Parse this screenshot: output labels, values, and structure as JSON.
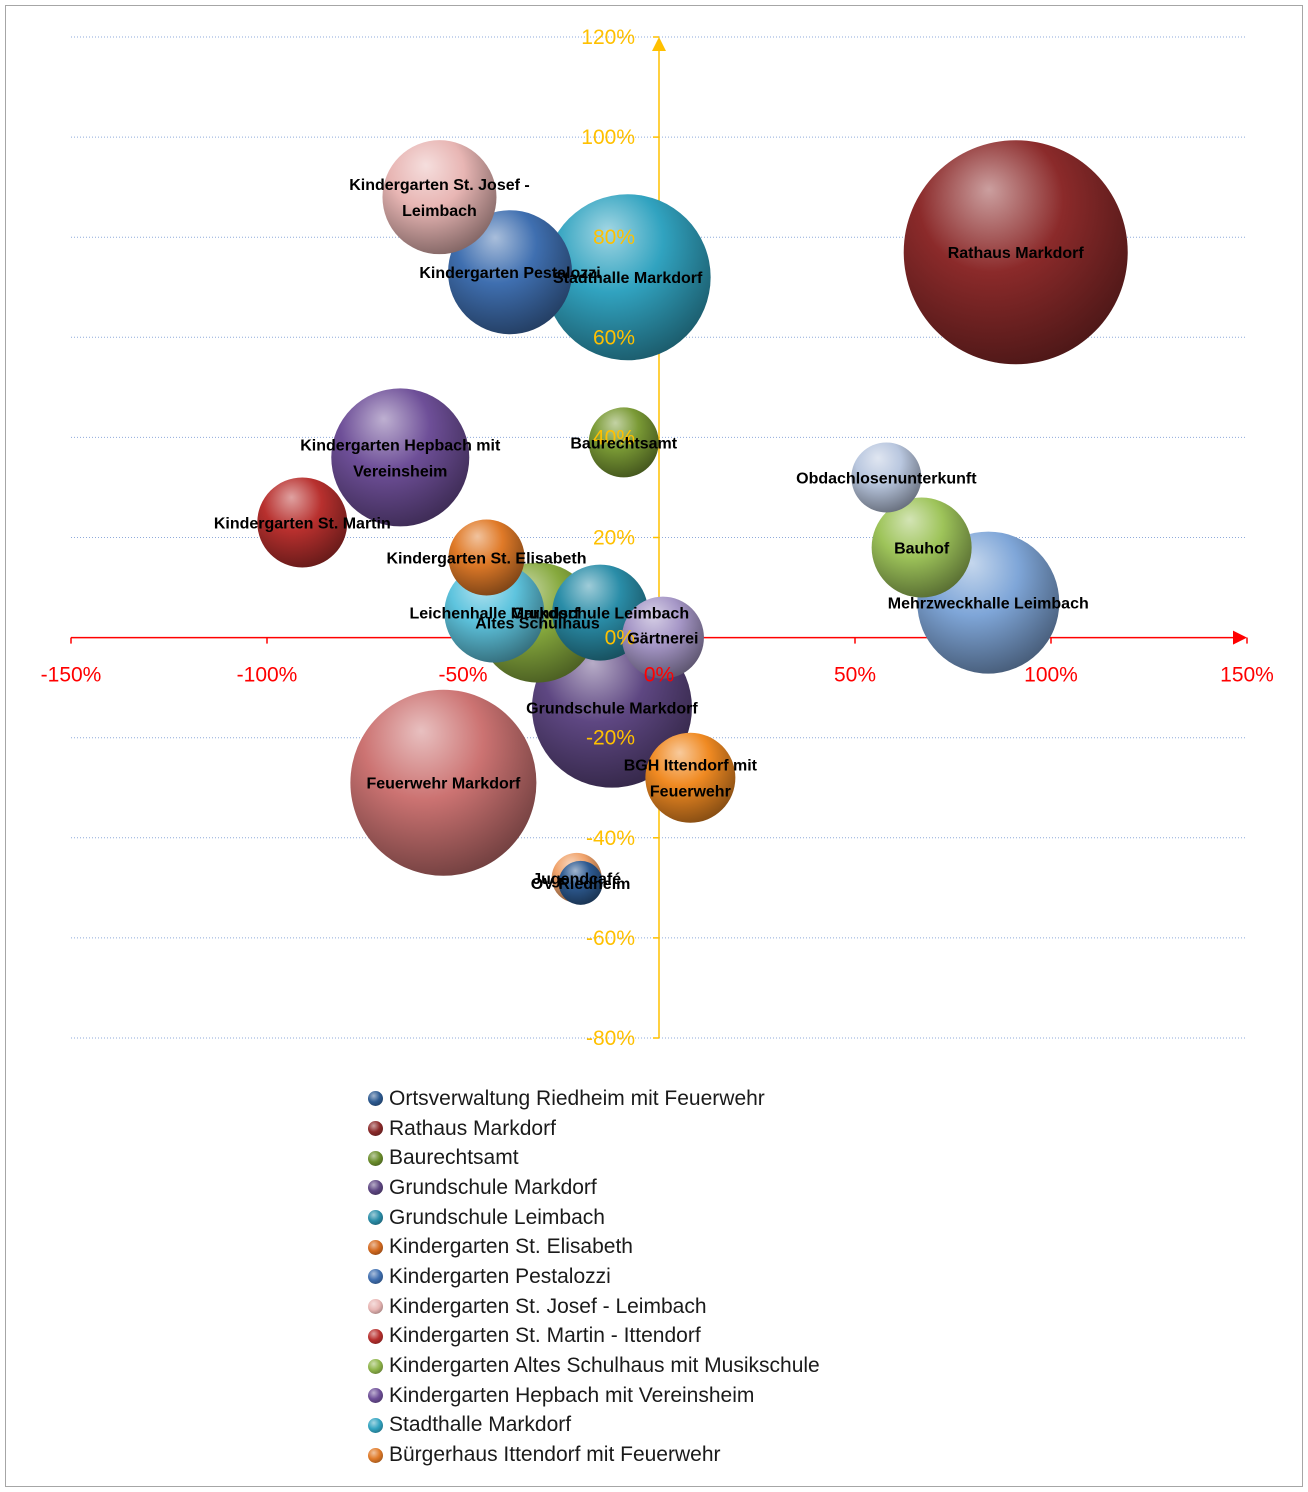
{
  "chart_data": {
    "type": "bubble",
    "title": "",
    "xlabel": "",
    "ylabel": "",
    "xlim": [
      -1.5,
      1.5
    ],
    "ylim": [
      -0.8,
      1.2
    ],
    "x_ticks": [
      "-150%",
      "-100%",
      "-50%",
      "0%",
      "50%",
      "100%",
      "150%"
    ],
    "y_ticks": [
      "120%",
      "100%",
      "80%",
      "60%",
      "40%",
      "20%",
      "0%",
      "-20%",
      "-40%",
      "-60%",
      "-80%"
    ],
    "grid": "horizontal-dotted",
    "legend_position": "bottom",
    "x_axis_color": "#ff0000",
    "y_axis_color": "#ffc000",
    "points": [
      {
        "label": "Rathaus Markdorf",
        "x": 0.91,
        "y": 0.77,
        "size": 112,
        "color": "#8b2a2a"
      },
      {
        "label": "Stadthalle Markdorf",
        "x": -0.08,
        "y": 0.72,
        "size": 83,
        "color": "#31a3c0"
      },
      {
        "label": "Kindergarten Pestalozzi",
        "x": -0.38,
        "y": 0.73,
        "size": 62,
        "color": "#3f6fb0"
      },
      {
        "label": "Kindergarten St. Josef -\nLeimbach",
        "x": -0.56,
        "y": 0.88,
        "size": 57,
        "color": "#e8b6b4"
      },
      {
        "label": "Kindergarten Hepbach mit\nVereinsheim",
        "x": -0.66,
        "y": 0.36,
        "size": 69,
        "color": "#6e4f98"
      },
      {
        "label": "Kindergarten St. Martin",
        "x": -0.91,
        "y": 0.23,
        "size": 45,
        "color": "#b8302e"
      },
      {
        "label": "Baurechtsamt",
        "x": -0.09,
        "y": 0.39,
        "size": 35,
        "color": "#7a9a35"
      },
      {
        "label": "Obdachlosenunterkunft",
        "x": 0.58,
        "y": 0.32,
        "size": 35,
        "color": "#b9c7df"
      },
      {
        "label": "Bauhof",
        "x": 0.67,
        "y": 0.18,
        "size": 50,
        "color": "#9ec45a"
      },
      {
        "label": "Mehrzweckhalle Leimbach",
        "x": 0.84,
        "y": 0.07,
        "size": 71,
        "color": "#7fa6d8"
      },
      {
        "label": "Grundschule Markdorf",
        "x": -0.12,
        "y": -0.14,
        "size": 80,
        "color": "#5e4782"
      },
      {
        "label": "Kindergarten St. Elisabeth",
        "x": -0.44,
        "y": 0.16,
        "size": 38,
        "color": "#e07a28"
      },
      {
        "label": "Grundschule Leimbach",
        "x": -0.15,
        "y": 0.05,
        "size": 48,
        "color": "#2a8da8"
      },
      {
        "label": "Altes Schulhaus",
        "x": -0.31,
        "y": 0.03,
        "size": 60,
        "color": "#86a93d"
      },
      {
        "label": "Leichenhalle Markdorf",
        "x": -0.42,
        "y": 0.05,
        "size": 50,
        "color": "#5ec4de"
      },
      {
        "label": "Gärtnerei",
        "x": 0.01,
        "y": 0.0,
        "size": 41,
        "color": "#a697c7"
      },
      {
        "label": "Feuerwehr Markdorf",
        "x": -0.55,
        "y": -0.29,
        "size": 93,
        "color": "#cc7372"
      },
      {
        "label": "BGH Ittendorf mit\nFeuerwehr",
        "x": 0.08,
        "y": -0.28,
        "size": 45,
        "color": "#f08a22"
      },
      {
        "label": "Jugendcafé",
        "x": -0.21,
        "y": -0.48,
        "size": 25,
        "color": "#f0a26a"
      },
      {
        "label": "OV Riedheim",
        "x": -0.2,
        "y": -0.49,
        "size": 22,
        "color": "#2d5a91"
      }
    ]
  },
  "legend": [
    {
      "label": "Ortsverwaltung Riedheim mit Feuerwehr",
      "color": "#2d5a91"
    },
    {
      "label": "Rathaus Markdorf",
      "color": "#8b2a2a"
    },
    {
      "label": "Baurechtsamt",
      "color": "#6b8e2c"
    },
    {
      "label": "Grundschule Markdorf",
      "color": "#5e4782"
    },
    {
      "label": "Grundschule Leimbach",
      "color": "#2a8da8"
    },
    {
      "label": "Kindergarten St. Elisabeth",
      "color": "#d46a1f"
    },
    {
      "label": "Kindergarten Pestalozzi",
      "color": "#3f6fb0"
    },
    {
      "label": "Kindergarten St. Josef - Leimbach",
      "color": "#e8b6b4"
    },
    {
      "label": "Kindergarten St. Martin - Ittendorf",
      "color": "#b8302e"
    },
    {
      "label": "Kindergarten Altes Schulhaus mit Musikschule",
      "color": "#8fb54a"
    },
    {
      "label": "Kindergarten Hepbach mit Vereinsheim",
      "color": "#6e4f98"
    },
    {
      "label": "Stadthalle Markdorf",
      "color": "#31a3c0"
    },
    {
      "label": "Bürgerhaus Ittendorf mit Feuerwehr",
      "color": "#e07a28"
    }
  ]
}
